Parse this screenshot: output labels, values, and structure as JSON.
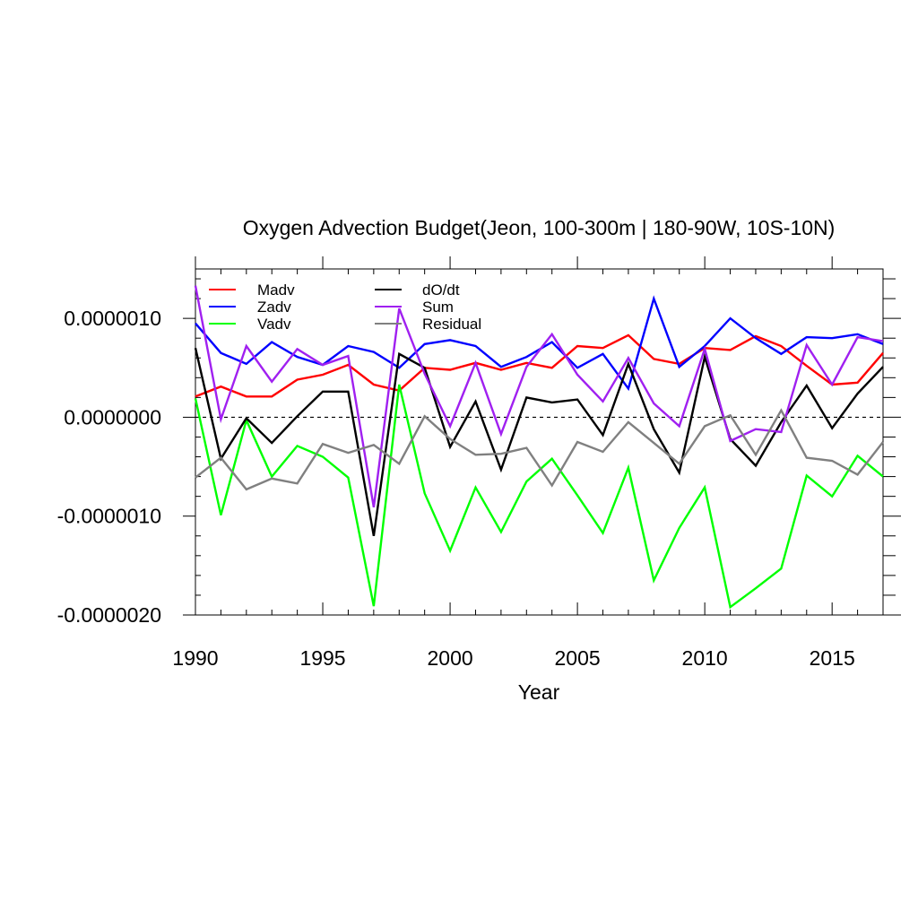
{
  "chart_data": {
    "type": "line",
    "title": "Oxygen Advection Budget(Jeon, 100-300m | 180-90W, 10S-10N)",
    "xlabel": "Year",
    "ylabel": "",
    "xlim": [
      1990,
      2017
    ],
    "ylim": [
      -2e-06,
      1.5e-06
    ],
    "x_ticks": [
      1990,
      1995,
      2000,
      2005,
      2010,
      2015
    ],
    "x_tick_labels": [
      "1990",
      "1995",
      "2000",
      "2005",
      "2010",
      "2015"
    ],
    "y_ticks": [
      1e-06,
      0.0,
      -1e-06,
      -2e-06
    ],
    "y_tick_labels": [
      "0.0000010",
      "0.0000000",
      "-0.0000010",
      "-0.0000020"
    ],
    "zero_line": {
      "y": 0,
      "style": "dashed"
    },
    "grid": false,
    "legend_position": "top-left",
    "x": [
      1990,
      1991,
      1992,
      1993,
      1994,
      1995,
      1996,
      1997,
      1998,
      1999,
      2000,
      2001,
      2002,
      2003,
      2004,
      2005,
      2006,
      2007,
      2008,
      2009,
      2010,
      2011,
      2012,
      2013,
      2014,
      2015,
      2016,
      2017
    ],
    "series": [
      {
        "name": "Madv",
        "color": "#ff0000",
        "values": [
          2.1e-07,
          3.1e-07,
          2.1e-07,
          2.1e-07,
          3.8e-07,
          4.3e-07,
          5.3e-07,
          3.3e-07,
          2.7e-07,
          5e-07,
          4.8e-07,
          5.5e-07,
          4.8e-07,
          5.5e-07,
          5e-07,
          7.2e-07,
          7e-07,
          8.3e-07,
          5.9e-07,
          5.4e-07,
          7e-07,
          6.8e-07,
          8.2e-07,
          7.2e-07,
          5.2e-07,
          3.3e-07,
          3.5e-07,
          6.5e-07
        ]
      },
      {
        "name": "Zadv",
        "color": "#0000ff",
        "values": [
          9.5e-07,
          6.5e-07,
          5.4e-07,
          7.6e-07,
          6.1e-07,
          5.3e-07,
          7.2e-07,
          6.6e-07,
          5e-07,
          7.4e-07,
          7.8e-07,
          7.2e-07,
          5.1e-07,
          6.1e-07,
          7.6e-07,
          5e-07,
          6.4e-07,
          2.9e-07,
          1.2e-06,
          5.1e-07,
          7.2e-07,
          1e-06,
          8e-07,
          6.4e-07,
          8.1e-07,
          8e-07,
          8.4e-07,
          7.4e-07
        ]
      },
      {
        "name": "Vadv",
        "color": "#00ff00",
        "values": [
          1.9e-07,
          -9.9e-07,
          -3e-08,
          -6e-07,
          -2.9e-07,
          -4e-07,
          -6.1e-07,
          -1.91e-06,
          3.3e-07,
          -7.7e-07,
          -1.35e-06,
          -7.1e-07,
          -1.16e-06,
          -6.5e-07,
          -4.2e-07,
          -7.9e-07,
          -1.17e-06,
          -5.1e-07,
          -1.65e-06,
          -1.12e-06,
          -7.1e-07,
          -1.92e-06,
          -1.73e-06,
          -1.53e-06,
          -5.9e-07,
          -8e-07,
          -3.9e-07,
          -6e-07
        ]
      },
      {
        "name": "dO/dt",
        "color": "#000000",
        "values": [
          7e-07,
          -4.2e-07,
          -1e-08,
          -2.6e-07,
          1e-08,
          2.6e-07,
          2.6e-07,
          -1.2e-06,
          6.4e-07,
          5e-07,
          -3e-07,
          1.6e-07,
          -5.3e-07,
          2e-07,
          1.5e-07,
          1.8e-07,
          -1.8e-07,
          5.4e-07,
          -1.2e-07,
          -5.6e-07,
          6.1e-07,
          -2.2e-07,
          -4.9e-07,
          -5e-08,
          3.2e-07,
          -1.1e-07,
          2.4e-07,
          5.1e-07
        ]
      },
      {
        "name": "Sum",
        "color": "#a020f0",
        "values": [
          1.33e-06,
          -2e-08,
          7.2e-07,
          3.6e-07,
          6.9e-07,
          5.3e-07,
          6.2e-07,
          -9.1e-07,
          1.1e-06,
          4.4e-07,
          -9e-08,
          5.5e-07,
          -1.7e-07,
          5.1e-07,
          8.4e-07,
          4.3e-07,
          1.6e-07,
          6e-07,
          1.4e-07,
          -9e-08,
          6.9e-07,
          -2.4e-07,
          -1.2e-07,
          -1.5e-07,
          7.3e-07,
          3.3e-07,
          8.1e-07,
          7.7e-07
        ]
      },
      {
        "name": "Residual",
        "color": "#808080",
        "values": [
          -6.1e-07,
          -4.1e-07,
          -7.3e-07,
          -6.2e-07,
          -6.7e-07,
          -2.7e-07,
          -3.6e-07,
          -2.8e-07,
          -4.7e-07,
          1e-08,
          -2.2e-07,
          -3.8e-07,
          -3.7e-07,
          -3.1e-07,
          -6.9e-07,
          -2.5e-07,
          -3.5e-07,
          -5e-08,
          -2.6e-07,
          -4.7e-07,
          -9e-08,
          2e-08,
          -3.8e-07,
          7e-08,
          -4.1e-07,
          -4.4e-07,
          -5.8e-07,
          -2.5e-07
        ]
      }
    ],
    "legend": {
      "columns": [
        [
          "Madv",
          "Zadv",
          "Vadv"
        ],
        [
          "dO/dt",
          "Sum",
          "Residual"
        ]
      ]
    }
  }
}
